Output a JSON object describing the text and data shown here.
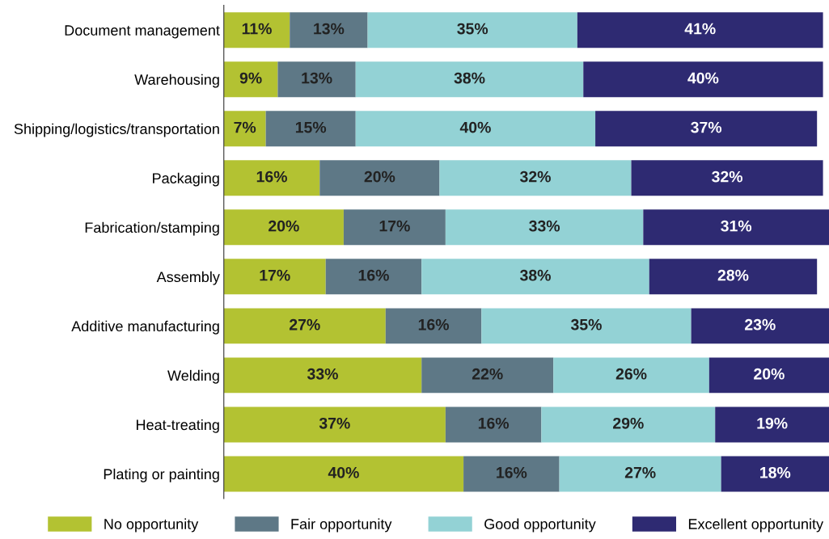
{
  "chart_data": {
    "type": "bar",
    "orientation": "horizontal",
    "stacked": true,
    "legend": "bottom",
    "grid": false,
    "tick_labels": "y",
    "categories": [
      "Document management",
      "Warehousing",
      "Shipping/logistics/transportation",
      "Packaging",
      "Fabrication/stamping",
      "Assembly",
      "Additive manufacturing",
      "Welding",
      "Heat-treating",
      "Plating or painting"
    ],
    "series": [
      {
        "name": "No opportunity",
        "color": "#b3c232",
        "values": [
          11,
          9,
          7,
          16,
          20,
          17,
          27,
          33,
          37,
          40
        ],
        "value_labels": [
          "11%",
          "9%",
          "7%",
          "16%",
          "20%",
          "17%",
          "27%",
          "33%",
          "37%",
          "40%"
        ]
      },
      {
        "name": "Fair opportunity",
        "color": "#5e7886",
        "values": [
          13,
          13,
          15,
          20,
          17,
          16,
          16,
          22,
          16,
          16
        ],
        "value_labels": [
          "13%",
          "13%",
          "15%",
          "20%",
          "17%",
          "16%",
          "16%",
          "22%",
          "16%",
          "16%"
        ]
      },
      {
        "name": "Good opportunity",
        "color": "#93d2d5",
        "values": [
          35,
          38,
          40,
          32,
          33,
          38,
          35,
          26,
          29,
          27
        ],
        "value_labels": [
          "35%",
          "38%",
          "40%",
          "32%",
          "33%",
          "38%",
          "35%",
          "26%",
          "29%",
          "27%"
        ]
      },
      {
        "name": "Excellent opportunity",
        "color": "#2e2a72",
        "values": [
          41,
          40,
          37,
          32,
          31,
          28,
          23,
          20,
          19,
          18
        ],
        "value_labels": [
          "41%",
          "40%",
          "37%",
          "32%",
          "31%",
          "28%",
          "23%",
          "20%",
          "19%",
          "18%"
        ]
      }
    ]
  }
}
